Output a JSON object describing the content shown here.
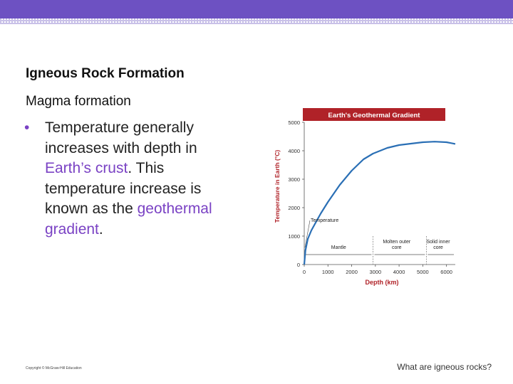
{
  "slide": {
    "title": "Igneous Rock Formation",
    "heading": "Magma formation",
    "bullet_symbol": "•",
    "bullet_parts": [
      {
        "text": "Temperature generally increases with depth in ",
        "highlight": false
      },
      {
        "text": "Earth’s crust",
        "highlight": true
      },
      {
        "text": ". This temperature increase is known as the ",
        "highlight": false
      },
      {
        "text": "geothermal gradient",
        "highlight": true
      },
      {
        "text": ".",
        "highlight": false
      }
    ],
    "copyright": "Copyright © McGraw-Hill Education",
    "footer_question": "What are igneous rocks?"
  },
  "colors": {
    "top_bar": "#6d51c2",
    "highlight": "#7a42c4",
    "chart_title_bar": "#b02228",
    "curve": "#2a6fb5",
    "axis_text": "#b02228"
  },
  "chart_data": {
    "type": "line",
    "title": "Earth's Geothermal Gradient",
    "xlabel": "Depth (km)",
    "ylabel": "Temperature in Earth (°C)",
    "xlim": [
      0,
      6371
    ],
    "ylim": [
      0,
      5000
    ],
    "xticks": [
      0,
      1000,
      2000,
      3000,
      4000,
      5000,
      6000
    ],
    "yticks": [
      0,
      1000,
      2000,
      3000,
      4000,
      5000
    ],
    "grid": false,
    "series": [
      {
        "name": "Temperature",
        "x": [
          0,
          50,
          150,
          300,
          500,
          700,
          1000,
          1500,
          2000,
          2500,
          2900,
          3500,
          4000,
          4500,
          5000,
          5500,
          6000,
          6371
        ],
        "y": [
          0,
          500,
          900,
          1200,
          1500,
          1800,
          2200,
          2800,
          3300,
          3700,
          3900,
          4100,
          4200,
          4250,
          4300,
          4320,
          4300,
          4240
        ]
      }
    ],
    "annotations": [
      {
        "text": "Temperature",
        "x": 150,
        "y": 1500
      },
      {
        "text": "Mantle",
        "x": 1450,
        "y": 550
      },
      {
        "text": "Molten outer core",
        "x": 3900,
        "y": 750
      },
      {
        "text": "Solid inner core",
        "x": 5650,
        "y": 750
      }
    ],
    "region_boundaries": [
      2900,
      5150
    ]
  }
}
